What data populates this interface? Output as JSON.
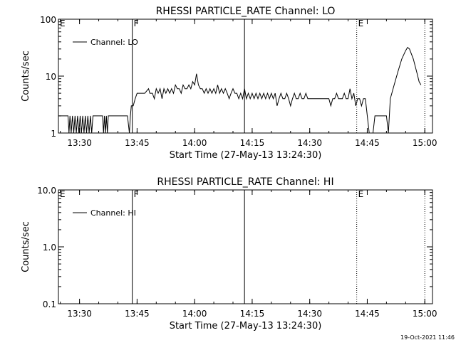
{
  "footer": {
    "timestamp": "19-Oct-2021 11:46"
  },
  "chart_data": [
    {
      "type": "line",
      "title": "RHESSI PARTICLE_RATE Channel: LO",
      "xlabel": "Start Time (27-May-13 13:24:30)",
      "ylabel": "Counts/sec",
      "yscale": "log",
      "ylim": [
        1,
        100
      ],
      "yticks": [
        {
          "value": 1,
          "label": "1"
        },
        {
          "value": 10,
          "label": "10"
        },
        {
          "value": 100,
          "label": "100"
        }
      ],
      "xlim": [
        "13:24:30",
        "15:02:00"
      ],
      "xticks": [
        {
          "value": "13:30",
          "label": "13:30"
        },
        {
          "value": "13:45",
          "label": "13:45"
        },
        {
          "value": "14:00",
          "label": "14:00"
        },
        {
          "value": "14:15",
          "label": "14:15"
        },
        {
          "value": "14:30",
          "label": "14:30"
        },
        {
          "value": "14:45",
          "label": "14:45"
        },
        {
          "value": "15:00",
          "label": "15:00"
        }
      ],
      "legend": {
        "placement": "top-left",
        "entries": [
          "Channel: LO"
        ]
      },
      "markers": [
        {
          "time": "13:24:30",
          "label": "E",
          "style": "none"
        },
        {
          "time": "13:43:45",
          "label": "F",
          "style": "solid"
        },
        {
          "time": "14:13:00",
          "label": "",
          "style": "solid"
        },
        {
          "time": "14:42:15",
          "label": "E",
          "style": "dotted"
        },
        {
          "time": "15:00:00",
          "label": "",
          "style": "dotted"
        }
      ],
      "series": [
        {
          "name": "Channel: LO",
          "points": [
            [
              "13:24:30",
              2
            ],
            [
              "13:26:30",
              2
            ],
            [
              "13:27:00",
              2
            ],
            [
              "13:27:15",
              1
            ],
            [
              "13:27:30",
              2
            ],
            [
              "13:27:50",
              1
            ],
            [
              "13:28:10",
              2
            ],
            [
              "13:28:30",
              1
            ],
            [
              "13:28:50",
              2
            ],
            [
              "13:29:10",
              1
            ],
            [
              "13:29:30",
              2
            ],
            [
              "13:29:50",
              1
            ],
            [
              "13:30:10",
              2
            ],
            [
              "13:30:30",
              1
            ],
            [
              "13:30:50",
              2
            ],
            [
              "13:31:10",
              1
            ],
            [
              "13:31:30",
              2
            ],
            [
              "13:31:50",
              1
            ],
            [
              "13:32:10",
              2
            ],
            [
              "13:32:30",
              1
            ],
            [
              "13:32:50",
              2
            ],
            [
              "13:33:10",
              1
            ],
            [
              "13:33:30",
              2
            ],
            [
              "13:36:00",
              2
            ],
            [
              "13:36:15",
              1
            ],
            [
              "13:36:30",
              2
            ],
            [
              "13:36:45",
              1
            ],
            [
              "13:37:00",
              2
            ],
            [
              "13:37:15",
              1
            ],
            [
              "13:37:30",
              2
            ],
            [
              "13:42:30",
              2
            ],
            [
              "13:43:00",
              1
            ],
            [
              "13:43:15",
              2
            ],
            [
              "13:43:30",
              3
            ],
            [
              "13:44:00",
              3
            ],
            [
              "13:44:30",
              4
            ],
            [
              "13:45:00",
              5
            ],
            [
              "13:47:00",
              5
            ],
            [
              "13:48:00",
              6
            ],
            [
              "13:48:20",
              5
            ],
            [
              "13:49:00",
              5
            ],
            [
              "13:49:30",
              4
            ],
            [
              "13:50:00",
              6
            ],
            [
              "13:50:30",
              5
            ],
            [
              "13:51:00",
              6
            ],
            [
              "13:51:30",
              4
            ],
            [
              "13:52:00",
              6
            ],
            [
              "13:52:30",
              5
            ],
            [
              "13:53:00",
              6
            ],
            [
              "13:53:30",
              5
            ],
            [
              "13:54:00",
              6
            ],
            [
              "13:54:30",
              5
            ],
            [
              "13:55:00",
              7
            ],
            [
              "13:55:30",
              6
            ],
            [
              "13:56:00",
              6
            ],
            [
              "13:56:30",
              5
            ],
            [
              "13:57:00",
              7
            ],
            [
              "13:57:30",
              6
            ],
            [
              "13:58:00",
              6
            ],
            [
              "13:58:30",
              7
            ],
            [
              "13:59:00",
              6
            ],
            [
              "13:59:30",
              8
            ],
            [
              "14:00:00",
              7
            ],
            [
              "14:00:30",
              11
            ],
            [
              "14:01:00",
              7
            ],
            [
              "14:01:30",
              6
            ],
            [
              "14:02:00",
              6
            ],
            [
              "14:02:30",
              5
            ],
            [
              "14:03:00",
              6
            ],
            [
              "14:03:30",
              5
            ],
            [
              "14:04:00",
              6
            ],
            [
              "14:04:30",
              5
            ],
            [
              "14:05:00",
              6
            ],
            [
              "14:05:30",
              5
            ],
            [
              "14:06:00",
              7
            ],
            [
              "14:06:30",
              5
            ],
            [
              "14:07:00",
              6
            ],
            [
              "14:07:30",
              5
            ],
            [
              "14:08:00",
              6
            ],
            [
              "14:08:30",
              5
            ],
            [
              "14:09:00",
              4
            ],
            [
              "14:09:30",
              5
            ],
            [
              "14:10:00",
              6
            ],
            [
              "14:10:30",
              5
            ],
            [
              "14:11:00",
              5
            ],
            [
              "14:11:30",
              4
            ],
            [
              "14:12:00",
              5
            ],
            [
              "14:12:30",
              4
            ],
            [
              "14:13:00",
              6
            ],
            [
              "14:13:30",
              4
            ],
            [
              "14:14:00",
              5
            ],
            [
              "14:14:30",
              4
            ],
            [
              "14:15:00",
              5
            ],
            [
              "14:15:30",
              4
            ],
            [
              "14:16:00",
              5
            ],
            [
              "14:16:30",
              4
            ],
            [
              "14:17:00",
              5
            ],
            [
              "14:17:30",
              4
            ],
            [
              "14:18:00",
              5
            ],
            [
              "14:18:30",
              4
            ],
            [
              "14:19:00",
              5
            ],
            [
              "14:19:30",
              4
            ],
            [
              "14:20:00",
              5
            ],
            [
              "14:20:30",
              4
            ],
            [
              "14:21:00",
              5
            ],
            [
              "14:21:30",
              3
            ],
            [
              "14:22:00",
              4
            ],
            [
              "14:22:30",
              5
            ],
            [
              "14:23:00",
              4
            ],
            [
              "14:23:30",
              4
            ],
            [
              "14:24:00",
              5
            ],
            [
              "14:24:30",
              4
            ],
            [
              "14:25:00",
              3
            ],
            [
              "14:25:30",
              4
            ],
            [
              "14:26:00",
              5
            ],
            [
              "14:26:30",
              4
            ],
            [
              "14:27:00",
              4
            ],
            [
              "14:27:30",
              5
            ],
            [
              "14:28:00",
              4
            ],
            [
              "14:28:30",
              4
            ],
            [
              "14:29:00",
              5
            ],
            [
              "14:29:30",
              4
            ],
            [
              "14:30:00",
              4
            ],
            [
              "14:31:00",
              4
            ],
            [
              "14:32:00",
              4
            ],
            [
              "14:33:00",
              4
            ],
            [
              "14:34:00",
              4
            ],
            [
              "14:35:00",
              4
            ],
            [
              "14:35:30",
              3
            ],
            [
              "14:36:00",
              4
            ],
            [
              "14:36:30",
              4
            ],
            [
              "14:37:00",
              5
            ],
            [
              "14:37:30",
              4
            ],
            [
              "14:38:00",
              4
            ],
            [
              "14:38:30",
              4
            ],
            [
              "14:39:00",
              5
            ],
            [
              "14:39:30",
              4
            ],
            [
              "14:40:00",
              4
            ],
            [
              "14:40:30",
              6
            ],
            [
              "14:41:00",
              4
            ],
            [
              "14:41:30",
              5
            ],
            [
              "14:42:00",
              3
            ],
            [
              "14:42:30",
              4
            ],
            [
              "14:43:00",
              4
            ],
            [
              "14:43:30",
              3
            ],
            [
              "14:44:00",
              4
            ],
            [
              "14:44:30",
              4
            ],
            [
              "14:45:00",
              2
            ],
            [
              "14:45:30",
              1
            ],
            [
              "14:46:30",
              1
            ],
            [
              "14:47:00",
              2
            ],
            [
              "14:50:00",
              2
            ],
            [
              "14:50:30",
              1
            ],
            [
              "14:51:00",
              4
            ],
            [
              "14:52:00",
              7
            ],
            [
              "14:53:00",
              12
            ],
            [
              "14:54:00",
              20
            ],
            [
              "14:55:00",
              28
            ],
            [
              "14:55:30",
              32
            ],
            [
              "14:56:00",
              30
            ],
            [
              "14:57:00",
              20
            ],
            [
              "14:58:00",
              11
            ],
            [
              "14:58:30",
              8
            ],
            [
              "14:59:00",
              7
            ]
          ]
        }
      ]
    },
    {
      "type": "line",
      "title": "RHESSI PARTICLE_RATE Channel: HI",
      "xlabel": "Start Time (27-May-13 13:24:30)",
      "ylabel": "Counts/sec",
      "yscale": "log",
      "ylim": [
        0.1,
        10
      ],
      "yticks": [
        {
          "value": 0.1,
          "label": "0.1"
        },
        {
          "value": 1,
          "label": "1.0"
        },
        {
          "value": 10,
          "label": "10.0"
        }
      ],
      "xlim": [
        "13:24:30",
        "15:02:00"
      ],
      "xticks": [
        {
          "value": "13:30",
          "label": "13:30"
        },
        {
          "value": "13:45",
          "label": "13:45"
        },
        {
          "value": "14:00",
          "label": "14:00"
        },
        {
          "value": "14:15",
          "label": "14:15"
        },
        {
          "value": "14:30",
          "label": "14:30"
        },
        {
          "value": "14:45",
          "label": "14:45"
        },
        {
          "value": "15:00",
          "label": "15:00"
        }
      ],
      "legend": {
        "placement": "top-left",
        "entries": [
          "Channel: HI"
        ]
      },
      "markers": [
        {
          "time": "13:24:30",
          "label": "E",
          "style": "none"
        },
        {
          "time": "13:43:45",
          "label": "F",
          "style": "solid"
        },
        {
          "time": "14:13:00",
          "label": "",
          "style": "solid"
        },
        {
          "time": "14:42:15",
          "label": "E",
          "style": "dotted"
        },
        {
          "time": "15:00:00",
          "label": "",
          "style": "dotted"
        }
      ],
      "series": [
        {
          "name": "Channel: HI",
          "points": []
        }
      ]
    }
  ]
}
